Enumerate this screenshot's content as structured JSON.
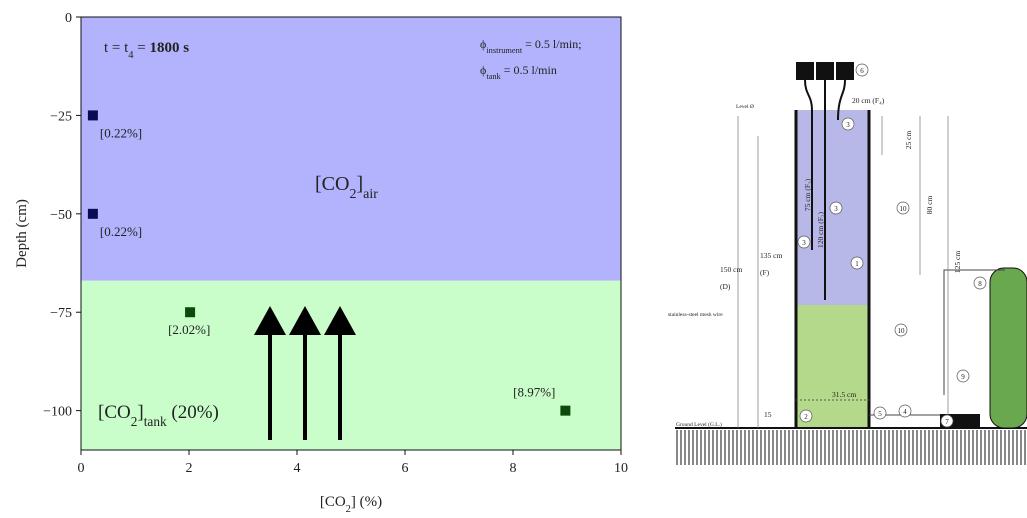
{
  "chart_data": {
    "type": "scatter",
    "x_label": [
      {
        "t": "[CO"
      },
      {
        "t": "2",
        "sub": true
      },
      {
        "t": "] (%)"
      }
    ],
    "y_label": "Depth (cm)",
    "xlim": [
      0,
      10
    ],
    "ylim": [
      -110,
      0
    ],
    "xticks": [
      0,
      2,
      4,
      6,
      8,
      10
    ],
    "yticks": [
      0,
      {
        "value": -25,
        "label": "−25"
      },
      {
        "value": -50,
        "label": "−50"
      },
      {
        "value": -75,
        "label": "−75"
      },
      {
        "value": -100,
        "label": "−100"
      }
    ],
    "regions": [
      {
        "from": 0,
        "to": -67,
        "color": "#b3b3fd",
        "label": [
          {
            "t": "[CO"
          },
          {
            "t": "2",
            "sub": true
          },
          {
            "t": "]"
          },
          {
            "t": "air",
            "sub": true
          }
        ]
      },
      {
        "from": -67,
        "to": -110,
        "color": "#c9fdc9",
        "label": [
          {
            "t": "[CO"
          },
          {
            "t": "2",
            "sub": true
          },
          {
            "t": "]"
          },
          {
            "t": "tank",
            "sub": true
          },
          {
            "t": " (20%)"
          }
        ]
      }
    ],
    "x": [
      0.22,
      0.22,
      2.02,
      8.97
    ],
    "values": [
      -25,
      -50,
      -75,
      -100
    ],
    "x_value_labels": [
      "[0.22%]",
      "[0.22%]",
      "[2.02%]",
      "[8.97%]"
    ],
    "colors": [
      "#0a0a55",
      "#0a0a55",
      "#0b4a0b",
      "#0b4a0b"
    ],
    "annotations": {
      "time": [
        {
          "t": "t = t"
        },
        {
          "t": "4",
          "sub": true
        },
        {
          "t": " = "
        },
        {
          "t": "1800 s",
          "bold": true
        }
      ],
      "flow": [
        [
          {
            "t": "ϕ"
          },
          {
            "t": "instrument",
            "sub": true
          },
          {
            "t": " = 0.5 l/min;"
          }
        ],
        [
          {
            "t": "ϕ"
          },
          {
            "t": "tank",
            "sub": true
          },
          {
            "t": " = 0.5 l/min"
          }
        ]
      ]
    }
  },
  "diagram": {
    "labels": [
      "Level Ø",
      "20 cm (F₄)",
      "25 cm",
      "80 cm",
      "125 cm",
      "150 cm",
      "(D)",
      "135 cm",
      "(F)",
      "75 cm (F₃)",
      "120 cm (F₂)",
      "stainless-steel mesh wire",
      "31.5 cm",
      "15",
      "Ground Level (G.L.)"
    ],
    "markers": [
      "6",
      "3",
      "3",
      "3",
      "10",
      "1",
      "10",
      "2",
      "5",
      "4",
      "7",
      "8",
      "9"
    ]
  }
}
